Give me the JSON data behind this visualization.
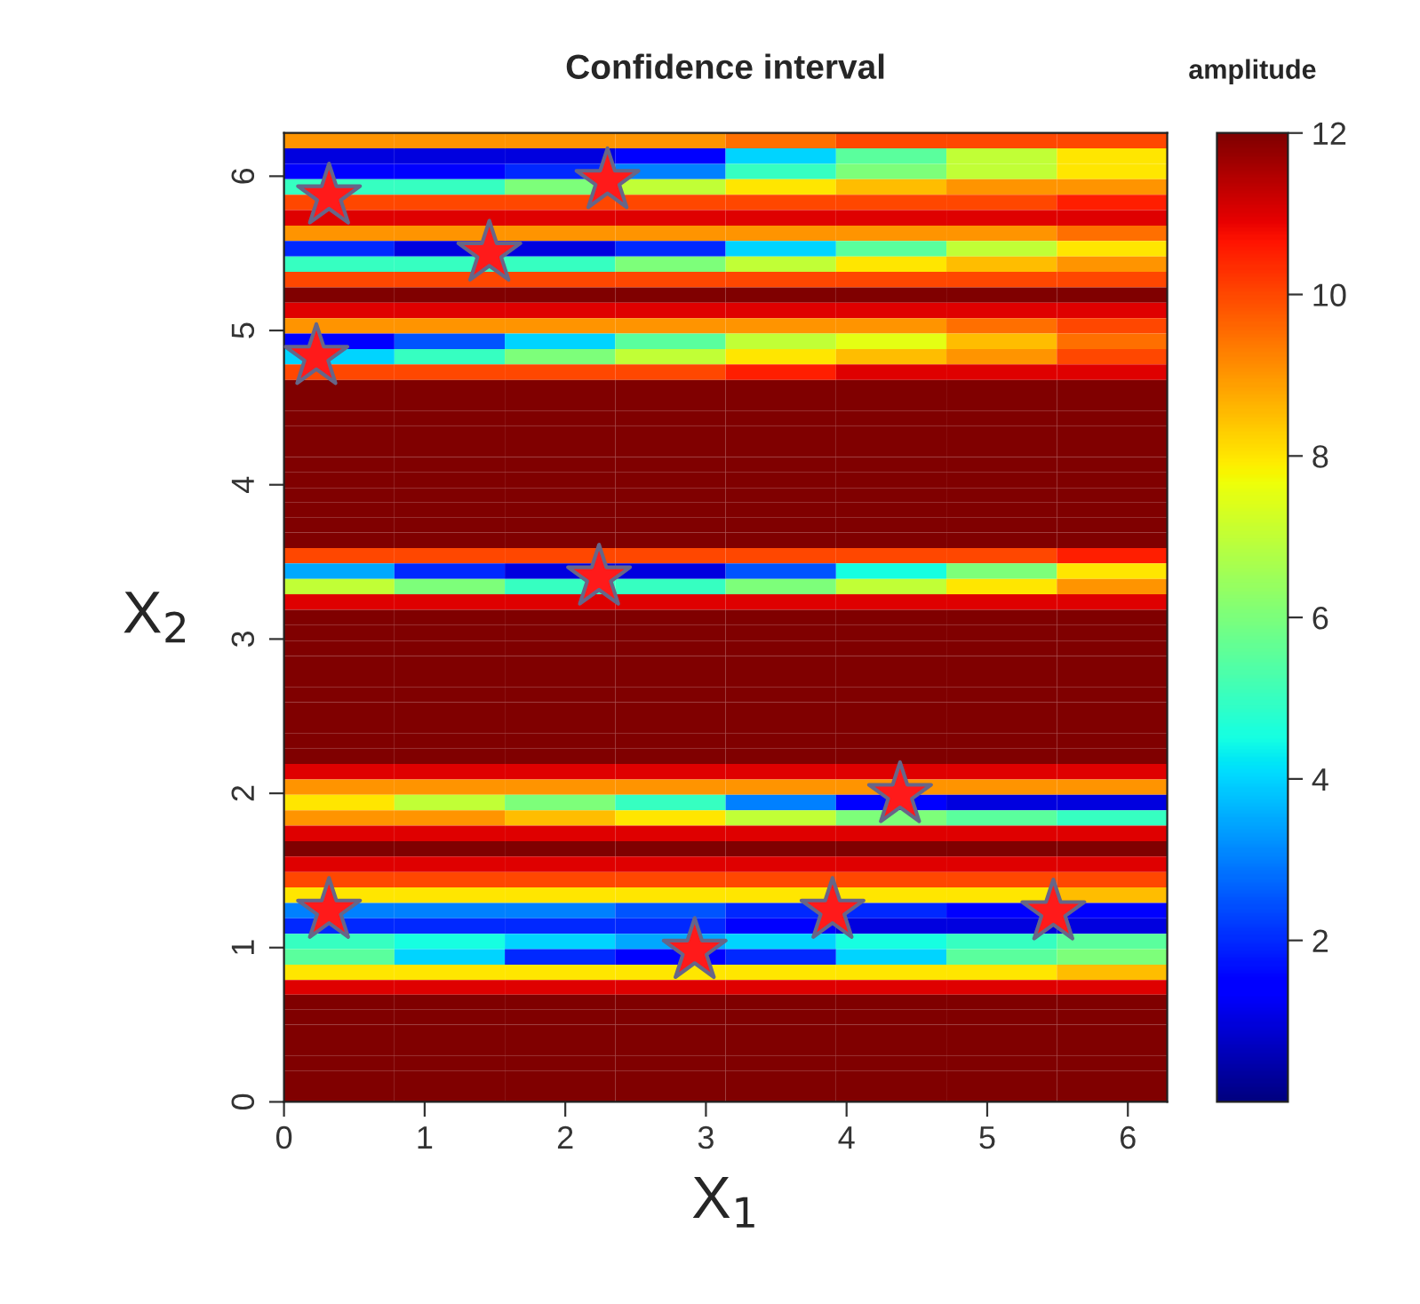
{
  "chart_data": {
    "type": "heatmap",
    "title": "Confidence interval",
    "clabel": "amplitude",
    "xlabel": "X$_{1}$",
    "ylabel": "X$_{2}$",
    "xlim": [
      0,
      6.28
    ],
    "ylim": [
      0,
      6.28
    ],
    "xticks": [
      0,
      1,
      2,
      3,
      4,
      5,
      6
    ],
    "yticks": [
      0,
      1,
      2,
      3,
      4,
      5,
      6
    ],
    "clim": [
      0,
      12
    ],
    "cticks": [
      2,
      4,
      6,
      8,
      10,
      12
    ],
    "x": [
      0.3925,
      1.1775,
      1.9625,
      2.7475,
      3.5325,
      4.3175,
      5.1025,
      5.8875
    ],
    "y": [
      6.23,
      6.13,
      6.03,
      5.93,
      5.83,
      5.73,
      5.63,
      5.53,
      5.43,
      5.33,
      5.23,
      5.13,
      5.03,
      4.93,
      4.83,
      4.73,
      4.63,
      4.53,
      4.43,
      4.33,
      4.23,
      4.13,
      4.03,
      3.93,
      3.84,
      3.74,
      3.64,
      3.54,
      3.44,
      3.34,
      3.24,
      3.14,
      3.04,
      2.94,
      2.84,
      2.74,
      2.64,
      2.54,
      2.44,
      2.34,
      2.24,
      2.14,
      2.04,
      1.94,
      1.84,
      1.74,
      1.64,
      1.54,
      1.44,
      1.34,
      1.24,
      1.14,
      1.04,
      0.94,
      0.84,
      0.74,
      0.65,
      0.55,
      0.45,
      0.35,
      0.25,
      0.15,
      0.05
    ],
    "cells": [
      [
        9,
        9,
        9,
        9,
        9.5,
        10,
        10,
        10
      ],
      [
        1,
        1,
        1,
        1.5,
        4,
        5.5,
        7,
        8
      ],
      [
        1.5,
        1.5,
        2,
        3,
        5,
        6,
        7,
        8
      ],
      [
        5,
        5,
        6,
        7,
        8,
        8.5,
        9,
        9
      ],
      [
        10,
        10,
        10,
        10,
        10,
        10,
        10,
        10.5
      ],
      [
        11,
        11,
        11,
        11,
        11,
        11,
        11,
        11
      ],
      [
        9,
        9,
        9,
        9,
        9,
        9,
        9,
        9.5
      ],
      [
        2,
        1,
        1,
        2,
        4,
        5.5,
        7,
        8
      ],
      [
        5,
        5,
        5,
        6,
        7,
        8,
        8.5,
        9
      ],
      [
        10,
        10,
        10,
        10,
        10,
        10,
        10,
        10
      ],
      [
        12,
        12,
        12,
        12,
        12,
        12,
        12,
        12
      ],
      [
        11,
        11,
        11,
        11,
        11,
        11,
        11,
        11
      ],
      [
        9,
        9,
        9,
        9,
        9,
        9,
        9.5,
        10
      ],
      [
        1.5,
        2.5,
        4,
        5.5,
        7,
        7.5,
        8.5,
        9.5
      ],
      [
        4,
        5,
        6,
        7,
        8,
        8.5,
        9,
        10
      ],
      [
        10,
        10,
        10,
        10,
        10.5,
        11,
        11,
        11
      ],
      [
        12,
        12,
        12,
        12,
        12,
        12,
        12,
        12
      ],
      [
        12,
        12,
        12,
        12,
        12,
        12,
        12,
        12
      ],
      [
        12,
        12,
        12,
        12,
        12,
        12,
        12,
        12
      ],
      [
        12,
        12,
        12,
        12,
        12,
        12,
        12,
        12
      ],
      [
        12,
        12,
        12,
        12,
        12,
        12,
        12,
        12
      ],
      [
        12,
        12,
        12,
        12,
        12,
        12,
        12,
        12
      ],
      [
        12,
        12,
        12,
        12,
        12,
        12,
        12,
        12
      ],
      [
        12,
        12,
        12,
        12,
        12,
        12,
        12,
        12
      ],
      [
        12,
        12,
        12,
        12,
        12,
        12,
        12,
        12
      ],
      [
        12,
        12,
        12,
        12,
        12,
        12,
        12,
        12
      ],
      [
        12,
        12,
        12,
        12,
        12,
        12,
        12,
        12
      ],
      [
        10,
        10,
        10,
        10,
        10,
        10,
        10,
        10.5
      ],
      [
        3.5,
        2,
        1,
        1,
        2.5,
        4.5,
        6,
        8
      ],
      [
        7,
        6,
        5,
        5,
        6,
        7,
        8,
        9
      ],
      [
        11,
        11,
        11,
        11,
        11,
        11,
        11,
        11
      ],
      [
        12,
        12,
        12,
        12,
        12,
        12,
        12,
        12
      ],
      [
        12,
        12,
        12,
        12,
        12,
        12,
        12,
        12
      ],
      [
        12,
        12,
        12,
        12,
        12,
        12,
        12,
        12
      ],
      [
        12,
        12,
        12,
        12,
        12,
        12,
        12,
        12
      ],
      [
        12,
        12,
        12,
        12,
        12,
        12,
        12,
        12
      ],
      [
        12,
        12,
        12,
        12,
        12,
        12,
        12,
        12
      ],
      [
        12,
        12,
        12,
        12,
        12,
        12,
        12,
        12
      ],
      [
        12,
        12,
        12,
        12,
        12,
        12,
        12,
        12
      ],
      [
        12,
        12,
        12,
        12,
        12,
        12,
        12,
        12
      ],
      [
        12,
        12,
        12,
        12,
        12,
        12,
        12,
        12
      ],
      [
        11,
        11,
        11,
        11,
        11,
        11,
        11,
        11
      ],
      [
        9,
        9,
        9,
        9,
        9,
        9,
        9,
        9
      ],
      [
        8,
        7,
        6,
        5,
        3,
        1.5,
        1,
        1
      ],
      [
        9,
        9,
        8.5,
        8,
        7,
        6,
        5.5,
        5
      ],
      [
        11,
        11,
        11,
        11,
        11,
        11,
        11,
        11
      ],
      [
        12,
        12,
        12,
        12,
        12,
        12,
        12,
        12
      ],
      [
        11,
        11,
        11,
        11,
        11,
        11,
        11,
        11
      ],
      [
        10,
        10,
        10,
        10,
        10,
        10,
        10,
        10
      ],
      [
        8,
        8,
        8,
        8,
        8,
        8,
        8,
        8.5
      ],
      [
        3,
        3,
        3,
        2.5,
        2,
        2,
        1.5,
        1.5
      ],
      [
        2,
        2,
        2,
        2,
        1.5,
        1,
        1,
        1
      ],
      [
        5,
        4.5,
        4,
        3.5,
        4,
        4.5,
        5,
        5.5
      ],
      [
        5.5,
        4,
        2,
        1.5,
        2,
        4,
        5.5,
        6
      ],
      [
        8,
        8,
        8,
        8,
        8,
        8,
        8,
        8.5
      ],
      [
        11,
        11,
        11,
        11,
        11,
        11,
        11,
        11
      ],
      [
        12,
        12,
        12,
        12,
        12,
        12,
        12,
        12
      ],
      [
        12,
        12,
        12,
        12,
        12,
        12,
        12,
        12
      ],
      [
        12,
        12,
        12,
        12,
        12,
        12,
        12,
        12
      ],
      [
        12,
        12,
        12,
        12,
        12,
        12,
        12,
        12
      ],
      [
        12,
        12,
        12,
        12,
        12,
        12,
        12,
        12
      ],
      [
        12,
        12,
        12,
        12,
        12,
        12,
        12,
        12
      ],
      [
        12,
        12,
        12,
        12,
        12,
        12,
        12,
        12
      ]
    ],
    "series": [
      {
        "type": "scatter",
        "color": "#ff1a1a",
        "marker": "star",
        "x": [
          0.32,
          2.3,
          1.46,
          0.23,
          2.24,
          4.38,
          0.32,
          2.92,
          3.9,
          5.47
        ],
        "values": [
          5.87,
          5.97,
          5.5,
          4.83,
          3.4,
          1.99,
          1.24,
          0.98,
          1.24,
          1.23
        ]
      }
    ]
  }
}
